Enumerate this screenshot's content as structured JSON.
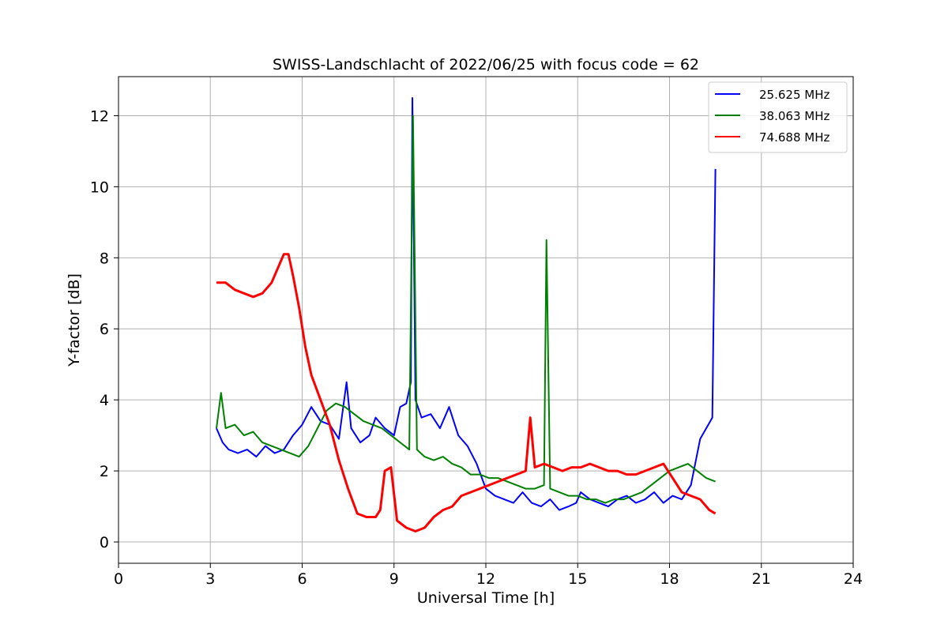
{
  "chart_data": {
    "type": "line",
    "title": "SWISS-Landschlacht of 2022/06/25 with focus code = 62",
    "xlabel": "Universal Time [h]",
    "ylabel": "Y-factor [dB]",
    "xlim": [
      0,
      24
    ],
    "ylim": [
      -0.6,
      13.1
    ],
    "xticks": [
      0,
      3,
      6,
      9,
      12,
      15,
      18,
      21,
      24
    ],
    "yticks": [
      0,
      2,
      4,
      6,
      8,
      10,
      12
    ],
    "grid": true,
    "legend_position": "top-right",
    "series": [
      {
        "name": "25.625 MHz",
        "color": "#0000ff",
        "x": [
          3.2,
          3.4,
          3.6,
          3.9,
          4.2,
          4.5,
          4.8,
          5.1,
          5.4,
          5.7,
          6.0,
          6.3,
          6.6,
          6.9,
          7.2,
          7.45,
          7.6,
          7.9,
          8.2,
          8.4,
          8.7,
          9.0,
          9.2,
          9.4,
          9.55,
          9.6,
          9.7,
          9.9,
          10.2,
          10.5,
          10.8,
          11.1,
          11.4,
          11.7,
          12.0,
          12.3,
          12.6,
          12.9,
          13.2,
          13.5,
          13.8,
          14.1,
          14.4,
          14.7,
          14.95,
          15.1,
          15.4,
          15.7,
          16.0,
          16.3,
          16.6,
          16.9,
          17.2,
          17.5,
          17.8,
          18.1,
          18.4,
          18.7,
          19.0,
          19.2,
          19.4,
          19.5
        ],
        "y": [
          3.2,
          2.8,
          2.6,
          2.5,
          2.6,
          2.4,
          2.7,
          2.5,
          2.6,
          3.0,
          3.3,
          3.8,
          3.4,
          3.3,
          2.9,
          4.5,
          3.2,
          2.8,
          3.0,
          3.5,
          3.2,
          3.0,
          3.8,
          3.9,
          4.5,
          12.5,
          4.0,
          3.5,
          3.6,
          3.2,
          3.8,
          3.0,
          2.7,
          2.2,
          1.5,
          1.3,
          1.2,
          1.1,
          1.4,
          1.1,
          1.0,
          1.2,
          0.9,
          1.0,
          1.1,
          1.4,
          1.2,
          1.1,
          1.0,
          1.2,
          1.3,
          1.1,
          1.2,
          1.4,
          1.1,
          1.3,
          1.2,
          1.6,
          2.9,
          3.2,
          3.5,
          10.5
        ]
      },
      {
        "name": "38.063 MHz",
        "color": "#008000",
        "x": [
          3.2,
          3.35,
          3.5,
          3.8,
          4.1,
          4.4,
          4.7,
          5.0,
          5.3,
          5.6,
          5.9,
          6.2,
          6.5,
          6.8,
          7.1,
          7.4,
          7.7,
          8.0,
          8.3,
          8.6,
          8.9,
          9.2,
          9.5,
          9.62,
          9.75,
          10.0,
          10.3,
          10.6,
          10.9,
          11.2,
          11.5,
          11.8,
          12.1,
          12.4,
          12.7,
          13.0,
          13.3,
          13.6,
          13.9,
          13.98,
          14.1,
          14.4,
          14.7,
          15.0,
          15.3,
          15.6,
          15.9,
          16.2,
          16.5,
          16.8,
          17.1,
          17.4,
          17.7,
          18.0,
          18.3,
          18.6,
          18.9,
          19.2,
          19.5
        ],
        "y": [
          3.2,
          4.2,
          3.2,
          3.3,
          3.0,
          3.1,
          2.8,
          2.7,
          2.6,
          2.5,
          2.4,
          2.7,
          3.2,
          3.7,
          3.9,
          3.8,
          3.6,
          3.4,
          3.3,
          3.2,
          3.0,
          2.8,
          2.6,
          12.0,
          2.6,
          2.4,
          2.3,
          2.4,
          2.2,
          2.1,
          1.9,
          1.9,
          1.8,
          1.8,
          1.7,
          1.6,
          1.5,
          1.5,
          1.6,
          8.5,
          1.5,
          1.4,
          1.3,
          1.3,
          1.2,
          1.2,
          1.1,
          1.2,
          1.2,
          1.3,
          1.4,
          1.6,
          1.8,
          2.0,
          2.1,
          2.2,
          2.0,
          1.8,
          1.7
        ]
      },
      {
        "name": "74.688 MHz",
        "color": "#ff0000",
        "x": [
          3.2,
          3.5,
          3.8,
          4.1,
          4.4,
          4.7,
          5.0,
          5.2,
          5.4,
          5.55,
          5.7,
          5.9,
          6.1,
          6.3,
          6.6,
          6.9,
          7.2,
          7.5,
          7.8,
          8.1,
          8.4,
          8.55,
          8.7,
          8.9,
          9.1,
          9.4,
          9.7,
          10.0,
          10.3,
          10.6,
          10.9,
          11.2,
          11.5,
          11.8,
          12.1,
          12.4,
          12.7,
          13.0,
          13.3,
          13.45,
          13.6,
          13.9,
          14.2,
          14.5,
          14.8,
          15.1,
          15.4,
          15.7,
          16.0,
          16.3,
          16.6,
          16.9,
          17.2,
          17.5,
          17.8,
          18.1,
          18.4,
          18.7,
          19.0,
          19.3,
          19.5
        ],
        "y": [
          7.3,
          7.3,
          7.1,
          7.0,
          6.9,
          7.0,
          7.3,
          7.7,
          8.1,
          8.1,
          7.5,
          6.6,
          5.5,
          4.7,
          4.0,
          3.3,
          2.3,
          1.5,
          0.8,
          0.7,
          0.7,
          0.9,
          2.0,
          2.1,
          0.6,
          0.4,
          0.3,
          0.4,
          0.7,
          0.9,
          1.0,
          1.3,
          1.4,
          1.5,
          1.6,
          1.7,
          1.8,
          1.9,
          2.0,
          3.5,
          2.1,
          2.2,
          2.1,
          2.0,
          2.1,
          2.1,
          2.2,
          2.1,
          2.0,
          2.0,
          1.9,
          1.9,
          2.0,
          2.1,
          2.2,
          1.8,
          1.4,
          1.3,
          1.2,
          0.9,
          0.8
        ]
      }
    ]
  }
}
